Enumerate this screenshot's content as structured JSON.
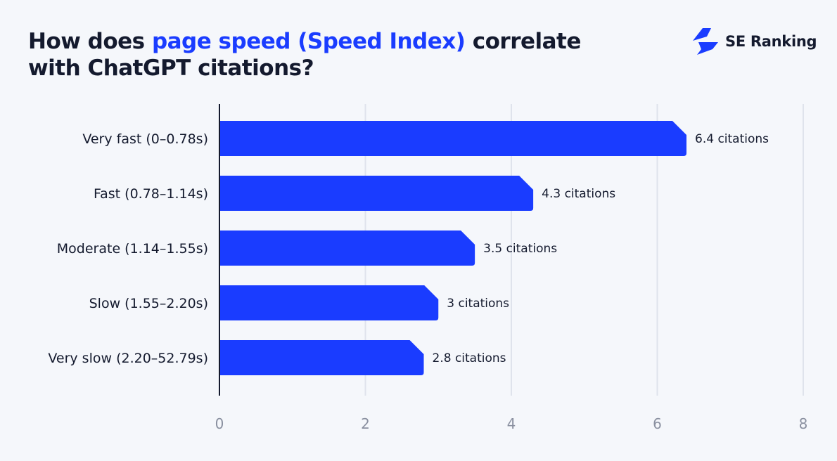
{
  "title": {
    "prefix": "How does ",
    "highlight": "page speed (Speed Index)",
    "suffix": " correlate",
    "line2": "with ChatGPT citations?"
  },
  "logo": {
    "text": "SE Ranking",
    "icon": "se-ranking-bolt-icon"
  },
  "colors": {
    "bar": "#1a3cff",
    "grid": "#dfe3ec",
    "axis": "#141a2e",
    "background": "#f5f7fb"
  },
  "chart_data": {
    "type": "bar",
    "orientation": "horizontal",
    "categories": [
      "Very fast (0–0.78s)",
      "Fast (0.78–1.14s)",
      "Moderate (1.14–1.55s)",
      "Slow (1.55–2.20s)",
      "Very slow (2.20–52.79s)"
    ],
    "values": [
      6.4,
      4.3,
      3.5,
      3,
      2.8
    ],
    "data_labels": [
      "6.4 citations",
      "4.3 citations",
      "3.5 citations",
      "3 citations",
      "2.8 citations"
    ],
    "xlim": [
      0,
      8
    ],
    "xticks": [
      "0",
      "2",
      "4",
      "6",
      "8"
    ],
    "grid": true,
    "title": "How does page speed (Speed Index) correlate with ChatGPT citations?"
  }
}
